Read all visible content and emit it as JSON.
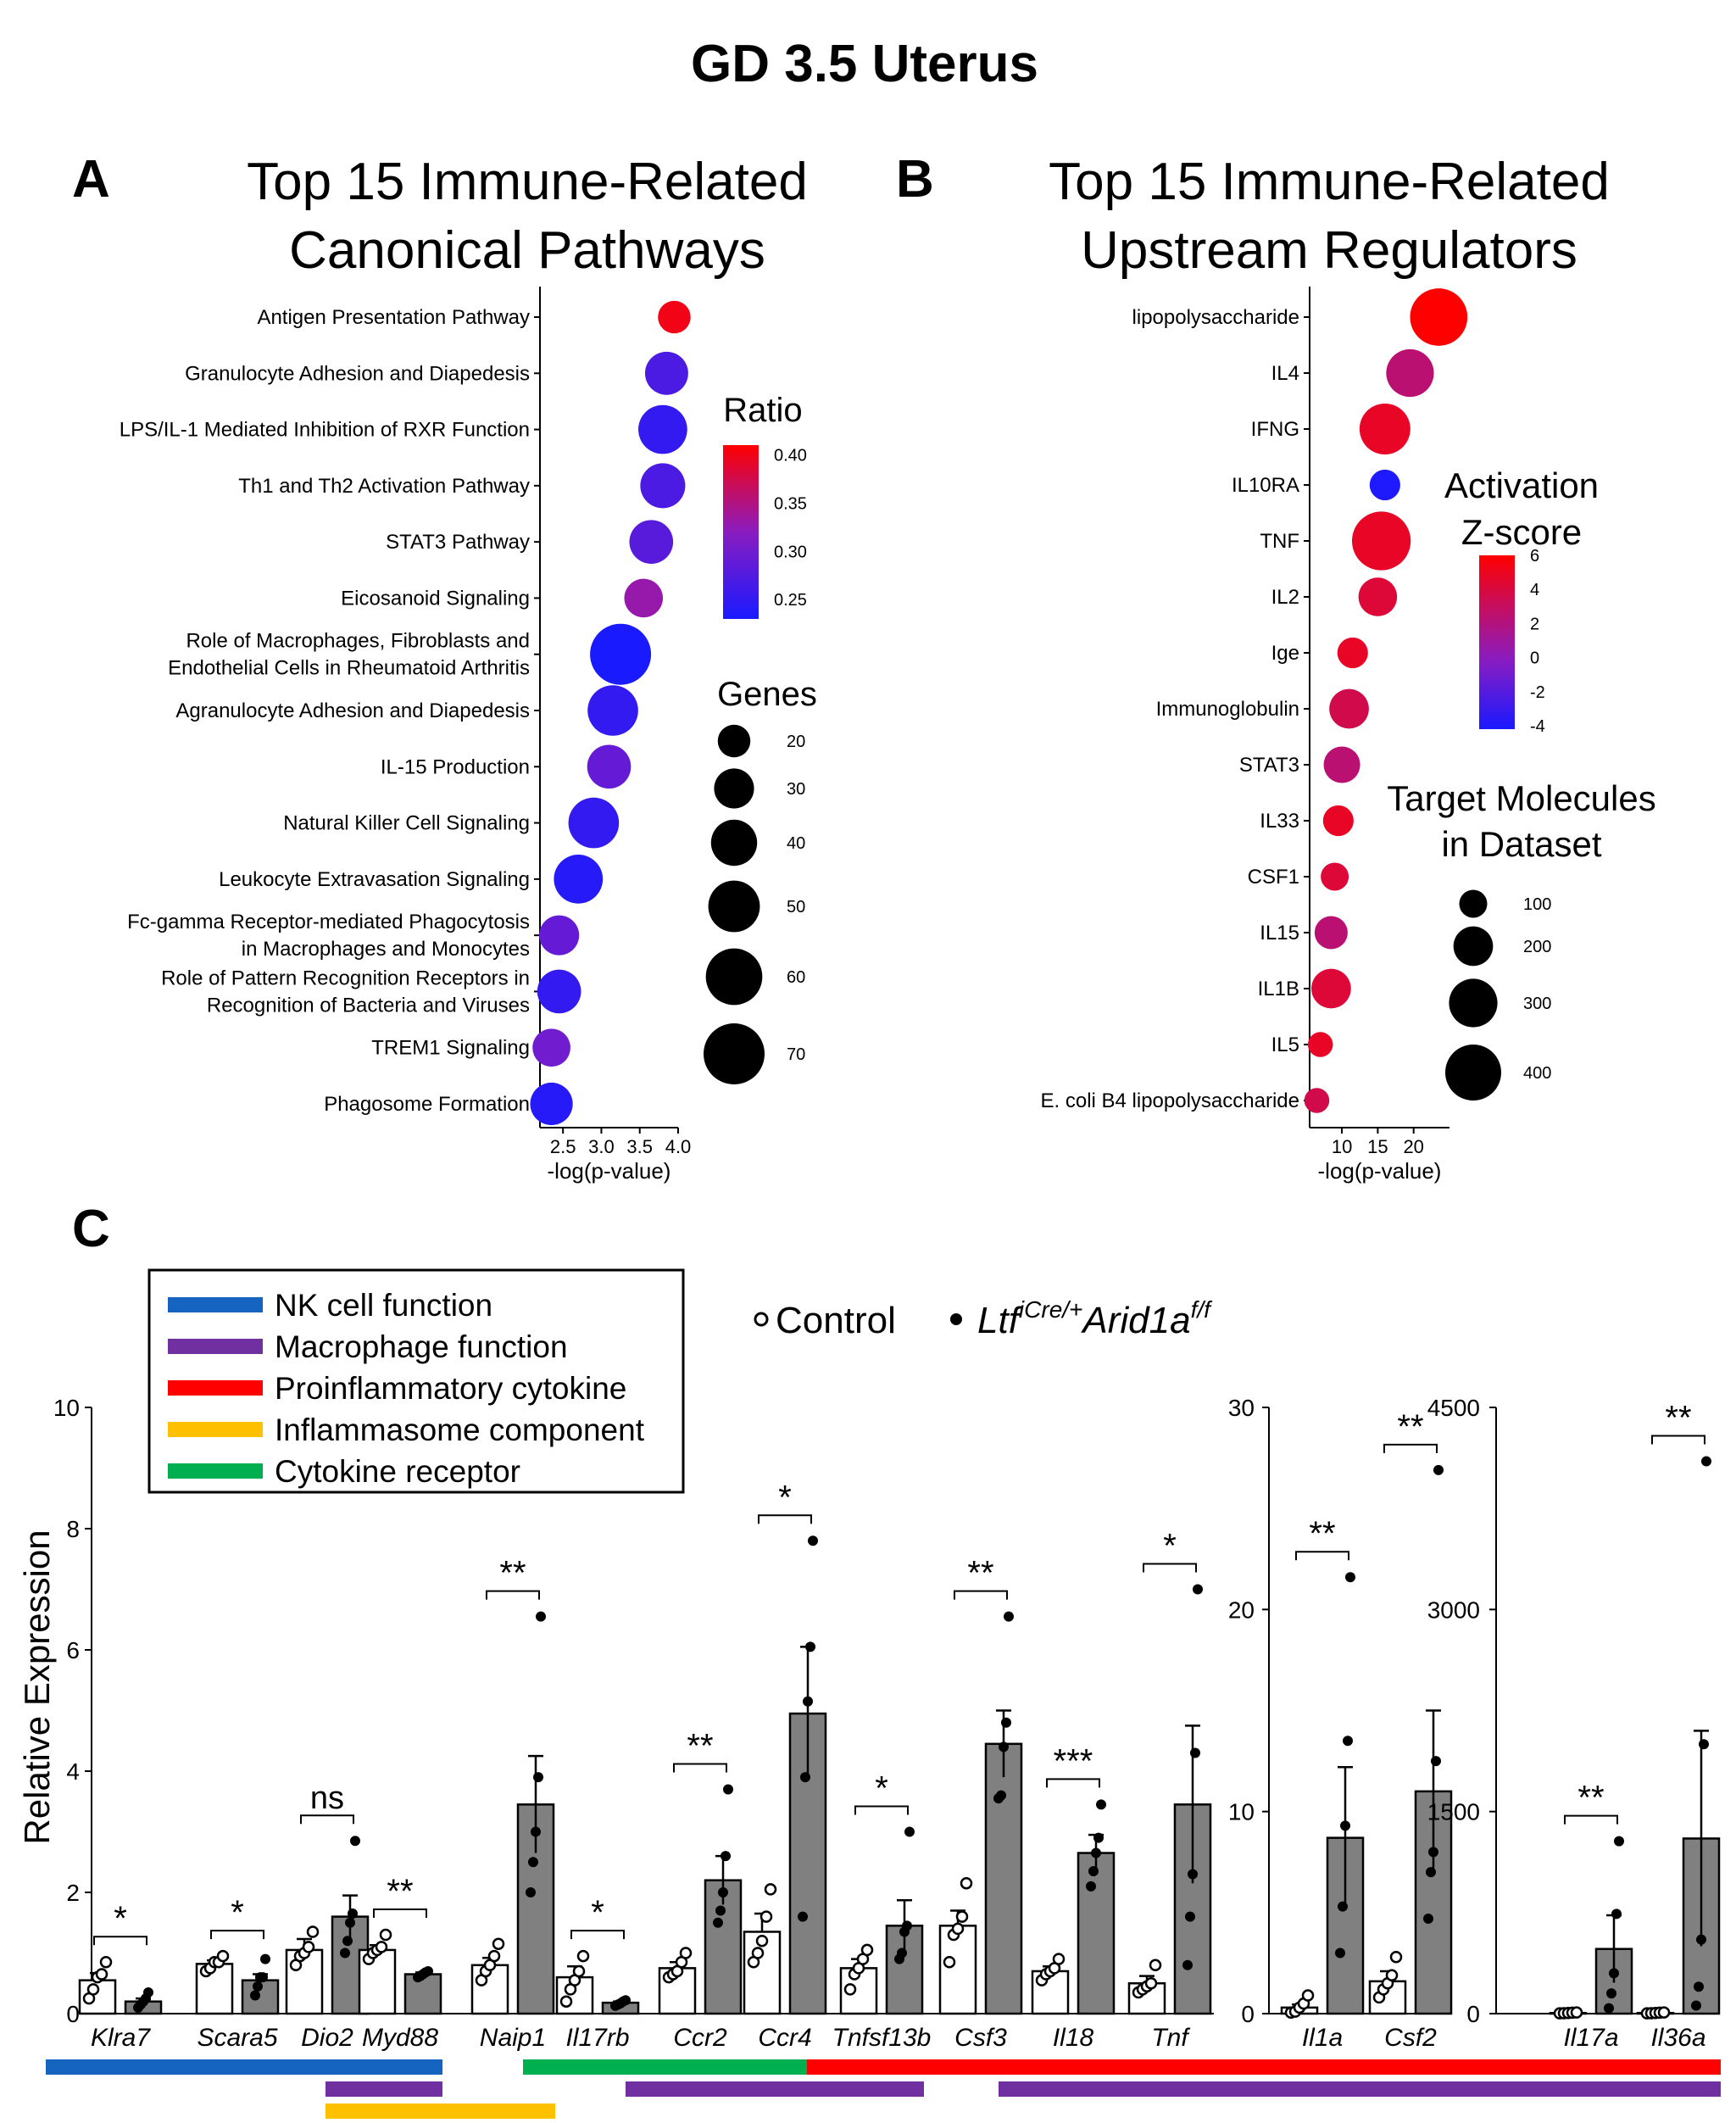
{
  "figure_title": "GD 3.5 Uterus",
  "chart_data": [
    {
      "panel": "A",
      "type": "scatter",
      "title": "Top 15 Immune-Related Canonical Pathways",
      "xlabel": "-log(p-value)",
      "ylabel": "",
      "xlim": [
        2.2,
        4.0
      ],
      "xticks": [
        "2.5",
        "3.0",
        "3.5",
        "4.0"
      ],
      "categories": [
        "Antigen Presentation Pathway",
        "Granulocyte Adhesion and Diapedesis",
        "LPS/IL-1 Mediated Inhibition of RXR Function",
        "Th1 and Th2 Activation Pathway",
        "STAT3 Pathway",
        "Eicosanoid Signaling",
        "Role of Macrophages, Fibroblasts and|Endothelial Cells in Rheumatoid Arthritis",
        "Agranulocyte Adhesion and Diapedesis",
        "IL-15 Production",
        "Natural Killer Cell Signaling",
        "Leukocyte Extravasation Signaling",
        "Fc-gamma Receptor-mediated Phagocytosis|in Macrophages and Monocytes",
        "Role of Pattern Recognition Receptors in|Recognition of Bacteria and Viruses",
        "TREM1 Signaling",
        "Phagosome Formation"
      ],
      "x": [
        3.95,
        3.85,
        3.8,
        3.8,
        3.65,
        3.55,
        3.25,
        3.15,
        3.1,
        2.9,
        2.7,
        2.45,
        2.45,
        2.35,
        2.35
      ],
      "color_values": [
        0.4,
        0.27,
        0.25,
        0.27,
        0.28,
        0.33,
        0.23,
        0.25,
        0.29,
        0.25,
        0.24,
        0.29,
        0.25,
        0.3,
        0.24
      ],
      "size_values": [
        20,
        35,
        45,
        38,
        36,
        28,
        70,
        48,
        36,
        48,
        45,
        30,
        36,
        27,
        34
      ],
      "color_legend": {
        "title": "Ratio",
        "ticks": [
          "0.40",
          "0.35",
          "0.30",
          "0.25"
        ],
        "range": [
          0.23,
          0.41
        ]
      },
      "size_legend": {
        "title": "Genes",
        "labels": [
          "20",
          "30",
          "40",
          "50",
          "60",
          "70"
        ],
        "values": [
          20,
          30,
          40,
          50,
          60,
          70
        ]
      }
    },
    {
      "panel": "B",
      "type": "scatter",
      "title": "Top 15 Immune-Related Upstream Regulators",
      "xlabel": "-log(p-value)",
      "ylabel": "",
      "xlim": [
        5.5,
        25
      ],
      "xticks": [
        "10",
        "15",
        "20"
      ],
      "categories": [
        "lipopolysaccharide",
        "IL4",
        "IFNG",
        "IL10RA",
        "TNF",
        "IL2",
        "Ige",
        "Immunoglobulin",
        "STAT3",
        "IL33",
        "CSF1",
        "IL15",
        "IL1B",
        "IL5",
        "E. coli B4 lipopolysaccharide"
      ],
      "x": [
        23.5,
        19.5,
        16,
        16,
        15.5,
        15,
        11.5,
        11,
        10,
        9.5,
        9,
        8.5,
        8.5,
        7,
        6.5
      ],
      "color_values": [
        6,
        3,
        5,
        -4,
        5,
        4.5,
        5,
        4,
        3,
        5,
        4.5,
        3,
        4.5,
        5,
        4
      ],
      "size_values": [
        420,
        290,
        330,
        120,
        440,
        190,
        120,
        200,
        170,
        120,
        100,
        140,
        200,
        80,
        80
      ],
      "color_legend": {
        "title_line1": "Activation",
        "title_line2": "Z-score",
        "ticks": [
          "6",
          "4",
          "2",
          "0",
          "-2",
          "-4"
        ],
        "range": [
          -4.2,
          6
        ]
      },
      "size_legend": {
        "title_line1": "Target Molecules",
        "title_line2": "in Dataset",
        "labels": [
          "100",
          "200",
          "300",
          "400"
        ],
        "values": [
          100,
          200,
          300,
          400
        ]
      }
    },
    {
      "panel": "C",
      "type": "bar",
      "ylabel": "Relative Expression",
      "series": [
        {
          "name": "Control"
        },
        {
          "name": "LtficCre/+Arid1af/f"
        }
      ],
      "groups": [
        {
          "ylim": [
            0,
            10
          ],
          "yticks": [
            "0",
            "2",
            "4",
            "6",
            "8",
            "10"
          ],
          "genes": [
            {
              "name": "Klra7",
              "control_mean": 0.55,
              "control_sem": 0.12,
              "control_points": [
                0.25,
                0.4,
                0.6,
                0.65,
                0.85
              ],
              "mutant_mean": 0.2,
              "mutant_sem": 0.05,
              "mutant_points": [
                0.1,
                0.15,
                0.2,
                0.25,
                0.35
              ],
              "sig": "*"
            },
            {
              "name": "Scara5",
              "control_mean": 0.82,
              "control_sem": 0.06,
              "control_points": [
                0.7,
                0.75,
                0.85,
                0.85,
                0.95
              ],
              "mutant_mean": 0.55,
              "mutant_sem": 0.1,
              "mutant_points": [
                0.3,
                0.45,
                0.6,
                0.6,
                0.9
              ],
              "sig": "*"
            },
            {
              "name": "Dio2",
              "control_mean": 1.05,
              "control_sem": 0.18,
              "control_points": [
                0.8,
                0.95,
                1.0,
                1.1,
                1.35
              ],
              "mutant_mean": 1.6,
              "mutant_sem": 0.35,
              "mutant_points": [
                1.0,
                1.2,
                1.5,
                1.65,
                2.85
              ],
              "sig": "ns"
            },
            {
              "name": "Myd88",
              "control_mean": 1.05,
              "control_sem": 0.08,
              "control_points": [
                0.9,
                1.0,
                1.05,
                1.1,
                1.3
              ],
              "mutant_mean": 0.65,
              "mutant_sem": 0.03,
              "mutant_points": [
                0.6,
                0.62,
                0.65,
                0.68,
                0.7
              ],
              "sig": "**"
            },
            {
              "name": "Naip1",
              "control_mean": 0.8,
              "control_sem": 0.12,
              "control_points": [
                0.55,
                0.7,
                0.8,
                0.95,
                1.15
              ],
              "mutant_mean": 3.45,
              "mutant_sem": 0.8,
              "mutant_points": [
                2.0,
                2.5,
                3.0,
                3.9,
                6.55
              ],
              "sig": "**"
            },
            {
              "name": "Il17rb",
              "control_mean": 0.6,
              "control_sem": 0.18,
              "control_points": [
                0.2,
                0.4,
                0.55,
                0.7,
                0.95
              ],
              "mutant_mean": 0.18,
              "mutant_sem": 0.02,
              "mutant_points": [
                0.13,
                0.15,
                0.17,
                0.2,
                0.22
              ],
              "sig": "*"
            },
            {
              "name": "Ccr2",
              "control_mean": 0.75,
              "control_sem": 0.1,
              "control_points": [
                0.6,
                0.65,
                0.7,
                0.85,
                1.0
              ],
              "mutant_mean": 2.2,
              "mutant_sem": 0.4,
              "mutant_points": [
                1.5,
                1.7,
                2.0,
                2.6,
                3.7
              ],
              "sig": "**"
            },
            {
              "name": "Ccr4",
              "control_mean": 1.35,
              "control_sem": 0.3,
              "control_points": [
                0.85,
                1.0,
                1.2,
                1.6,
                2.05
              ],
              "mutant_mean": 4.95,
              "mutant_sem": 1.1,
              "mutant_points": [
                1.6,
                3.9,
                5.15,
                6.05,
                7.8
              ],
              "sig": "*"
            },
            {
              "name": "Tnfsf13b",
              "control_mean": 0.75,
              "control_sem": 0.15,
              "control_points": [
                0.4,
                0.65,
                0.75,
                0.9,
                1.05
              ],
              "mutant_mean": 1.45,
              "mutant_sem": 0.42,
              "mutant_points": [
                0.9,
                1.0,
                1.35,
                1.45,
                3.0
              ],
              "sig": "*"
            },
            {
              "name": "Csf3",
              "control_mean": 1.45,
              "control_sem": 0.25,
              "control_points": [
                0.85,
                1.3,
                1.4,
                1.6,
                2.15
              ],
              "mutant_mean": 4.45,
              "mutant_sem": 0.55,
              "mutant_points": [
                3.55,
                3.6,
                4.4,
                4.8,
                6.55
              ],
              "sig": "**"
            },
            {
              "name": "Il18",
              "control_mean": 0.7,
              "control_sem": 0.08,
              "control_points": [
                0.55,
                0.65,
                0.7,
                0.75,
                0.9
              ],
              "mutant_mean": 2.65,
              "mutant_sem": 0.3,
              "mutant_points": [
                2.1,
                2.35,
                2.65,
                2.9,
                3.45
              ],
              "sig": "***"
            },
            {
              "name": "Tnf",
              "control_mean": 0.5,
              "control_sem": 0.12,
              "control_points": [
                0.35,
                0.4,
                0.45,
                0.5,
                0.8
              ],
              "mutant_mean": 3.45,
              "mutant_sem": 1.3,
              "mutant_points": [
                0.8,
                1.6,
                2.3,
                4.3,
                7.0
              ],
              "sig": "*"
            }
          ]
        },
        {
          "ylim": [
            0,
            30
          ],
          "yticks": [
            "0",
            "10",
            "20",
            "30"
          ],
          "genes": [
            {
              "name": "Il1a",
              "control_mean": 0.3,
              "control_sem": 0.15,
              "control_points": [
                0.05,
                0.1,
                0.3,
                0.5,
                0.9
              ],
              "mutant_mean": 8.7,
              "mutant_sem": 3.5,
              "mutant_points": [
                3.0,
                5.3,
                9.3,
                13.5,
                21.6
              ],
              "sig": "**"
            },
            {
              "name": "Csf2",
              "control_mean": 1.6,
              "control_sem": 0.5,
              "control_points": [
                0.8,
                1.2,
                1.5,
                1.9,
                2.8
              ],
              "mutant_mean": 11.0,
              "mutant_sem": 4.0,
              "mutant_points": [
                4.7,
                7.0,
                8.0,
                12.5,
                26.9
              ],
              "sig": "**"
            }
          ]
        },
        {
          "ylim": [
            0,
            4500
          ],
          "yticks": [
            "0",
            "1500",
            "3000",
            "4500"
          ],
          "genes": [
            {
              "name": "Il17a",
              "control_mean": 5,
              "control_sem": 2,
              "control_points": [
                2,
                3,
                5,
                7,
                9
              ],
              "mutant_mean": 480,
              "mutant_sem": 250,
              "mutant_points": [
                40,
                150,
                300,
                740,
                1280
              ],
              "sig": "**"
            },
            {
              "name": "Il36a",
              "control_mean": 5,
              "control_sem": 2,
              "control_points": [
                2,
                3,
                5,
                7,
                9
              ],
              "mutant_mean": 1300,
              "mutant_sem": 800,
              "mutant_points": [
                60,
                200,
                550,
                2000,
                4100
              ],
              "sig": "**"
            }
          ]
        }
      ],
      "category_legend": [
        {
          "label": "NK cell function",
          "color": "#1565c0"
        },
        {
          "label": "Macrophage function",
          "color": "#7030a0"
        },
        {
          "label": "Proinflammatory cytokine",
          "color": "#ff0000"
        },
        {
          "label": "Inflammasome component",
          "color": "#ffc000"
        },
        {
          "label": "Cytokine receptor",
          "color": "#00b050"
        }
      ],
      "category_bars": [
        {
          "category": "NK cell function",
          "from_gene": "Klra7",
          "to_gene": "Myd88",
          "row": 0
        },
        {
          "category": "Cytokine receptor",
          "from_gene": "Il17rb",
          "to_gene": "Ccr4",
          "row": 0
        },
        {
          "category": "Proinflammatory cytokine",
          "from_gene": "Tnfsf13b",
          "to_gene": "Il36a",
          "row": 0
        },
        {
          "category": "Macrophage function",
          "from_gene": "Myd88",
          "to_gene": "Myd88",
          "row": 1
        },
        {
          "category": "Macrophage function",
          "from_gene": "Ccr2",
          "to_gene": "Tnfsf13b",
          "row": 1
        },
        {
          "category": "Macrophage function",
          "from_gene": "Il18",
          "to_gene": "Il36a",
          "row": 1
        },
        {
          "category": "Inflammasome component",
          "from_gene": "Myd88",
          "to_gene": "Naip1",
          "row": 2
        }
      ]
    }
  ],
  "panels": {
    "a": {
      "letter": "A",
      "title_line1": "Top 15 Immune-Related",
      "title_line2": "Canonical Pathways"
    },
    "b": {
      "letter": "B",
      "title_line1": "Top 15 Immune-Related",
      "title_line2": "Upstream Regulators"
    },
    "c": {
      "letter": "C",
      "legend_control": "Control",
      "legend_mutant_prefix": "Ltf",
      "legend_mutant_sup1": "iCre/+",
      "legend_mutant_mid": "Arid1a",
      "legend_mutant_sup2": "f/f"
    }
  },
  "colors": {
    "ratio_high": "#ff0000",
    "ratio_low": "#1a1aff",
    "bar_mutant": "#808080",
    "bar_control": "#ffffff",
    "axis": "#000000"
  }
}
